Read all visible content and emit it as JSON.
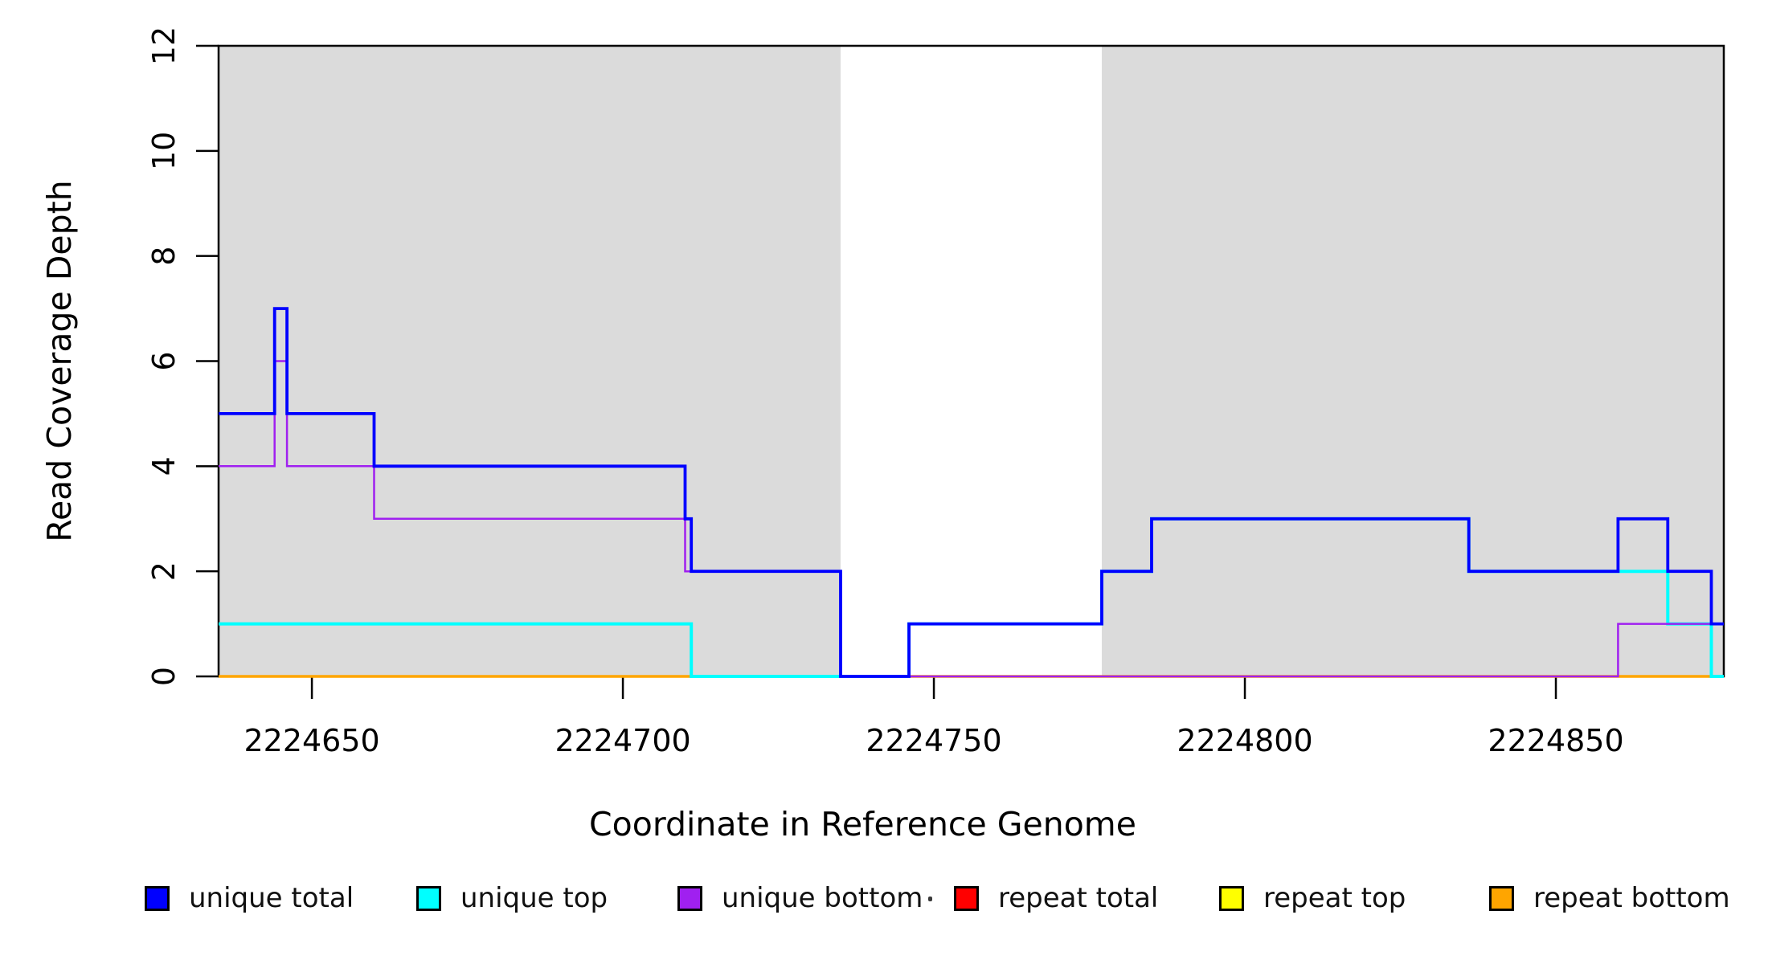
{
  "chart_data": {
    "type": "line",
    "subtype": "step-coverage",
    "title": "",
    "xlabel": "Coordinate in Reference Genome",
    "ylabel": "Read Coverage Depth",
    "xlim": [
      2224635,
      2224877
    ],
    "ylim": [
      0,
      12
    ],
    "xticks": [
      2224650,
      2224700,
      2224750,
      2224800,
      2224850
    ],
    "yticks": [
      0,
      2,
      4,
      6,
      8,
      10,
      12
    ],
    "grid": false,
    "box": true,
    "background_color": "#ffffff",
    "shaded_region_color": "#dbdbdb",
    "shaded_regions": [
      {
        "x0": 2224635,
        "x1": 2224735
      },
      {
        "x0": 2224777,
        "x1": 2224877
      }
    ],
    "series": [
      {
        "name": "unique total",
        "color": "#0000ff",
        "width": 3.8,
        "step_events": [
          [
            2224635,
            5
          ],
          [
            2224644,
            7
          ],
          [
            2224646,
            5
          ],
          [
            2224660,
            4
          ],
          [
            2224710,
            3
          ],
          [
            2224711,
            2
          ],
          [
            2224735,
            0
          ],
          [
            2224746,
            1
          ],
          [
            2224777,
            2
          ],
          [
            2224785,
            3
          ],
          [
            2224836,
            2
          ],
          [
            2224860,
            3
          ],
          [
            2224868,
            2
          ],
          [
            2224875,
            1
          ]
        ]
      },
      {
        "name": "unique top",
        "color": "#00ffff",
        "width": 4.0,
        "step_events": [
          [
            2224635,
            1
          ],
          [
            2224711,
            0
          ],
          [
            2224746,
            1
          ],
          [
            2224777,
            2
          ],
          [
            2224785,
            3
          ],
          [
            2224836,
            2
          ],
          [
            2224868,
            1
          ],
          [
            2224875,
            0
          ]
        ]
      },
      {
        "name": "unique bottom",
        "color": "#a020f0",
        "width": 2.5,
        "step_events": [
          [
            2224635,
            4
          ],
          [
            2224644,
            6
          ],
          [
            2224646,
            4
          ],
          [
            2224660,
            3
          ],
          [
            2224710,
            2
          ],
          [
            2224735,
            0
          ],
          [
            2224860,
            1
          ]
        ]
      },
      {
        "name": "repeat total",
        "color": "#ff0000",
        "width": 3.0,
        "step_events": [
          [
            2224635,
            0
          ]
        ]
      },
      {
        "name": "repeat top",
        "color": "#ffff00",
        "width": 3.0,
        "step_events": [
          [
            2224635,
            0
          ]
        ]
      },
      {
        "name": "repeat bottom",
        "color": "#ffa500",
        "width": 3.5,
        "step_events": [
          [
            2224635,
            0
          ]
        ]
      }
    ],
    "draw_order": [
      "repeat total",
      "repeat top",
      "repeat bottom",
      "unique top",
      "unique bottom",
      "unique total"
    ],
    "legend_position": "bottom"
  },
  "legend": {
    "entries": [
      {
        "label": "unique total",
        "color": "#0000ff"
      },
      {
        "label": "unique top",
        "color": "#00ffff"
      },
      {
        "label": "unique bottom",
        "color": "#a020f0"
      },
      {
        "label": "repeat total",
        "color": "#ff0000"
      },
      {
        "label": "repeat top",
        "color": "#ffff00"
      },
      {
        "label": "repeat bottom",
        "color": "#ffa500"
      }
    ]
  },
  "axes_text": {
    "x_title": "Coordinate in Reference Genome",
    "y_title": "Read Coverage Depth"
  }
}
